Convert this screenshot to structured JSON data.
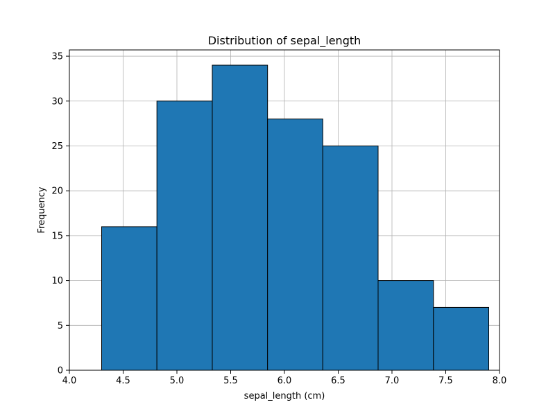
{
  "chart_data": {
    "type": "bar",
    "title": "Distribution of sepal_length",
    "xlabel": "sepal_length (cm)",
    "ylabel": "Frequency",
    "bin_edges": [
      4.3,
      4.814,
      5.329,
      5.843,
      6.357,
      6.871,
      7.386,
      7.9
    ],
    "values": [
      16,
      30,
      34,
      28,
      25,
      10,
      7
    ],
    "xlim": [
      4.0,
      8.0
    ],
    "ylim": [
      0,
      35.7
    ],
    "xticks": [
      {
        "value": 4.0,
        "label": "4.0"
      },
      {
        "value": 4.5,
        "label": "4.5"
      },
      {
        "value": 5.0,
        "label": "5.0"
      },
      {
        "value": 5.5,
        "label": "5.5"
      },
      {
        "value": 6.0,
        "label": "6.0"
      },
      {
        "value": 6.5,
        "label": "6.5"
      },
      {
        "value": 7.0,
        "label": "7.0"
      },
      {
        "value": 7.5,
        "label": "7.5"
      },
      {
        "value": 8.0,
        "label": "8.0"
      }
    ],
    "yticks": [
      {
        "value": 0,
        "label": "0"
      },
      {
        "value": 5,
        "label": "5"
      },
      {
        "value": 10,
        "label": "10"
      },
      {
        "value": 15,
        "label": "15"
      },
      {
        "value": 20,
        "label": "20"
      },
      {
        "value": 25,
        "label": "25"
      },
      {
        "value": 30,
        "label": "30"
      },
      {
        "value": 35,
        "label": "35"
      }
    ],
    "grid": true,
    "bar_color": "#1f77b4",
    "edge_color": "#000000",
    "grid_color": "#b0b0b0"
  }
}
